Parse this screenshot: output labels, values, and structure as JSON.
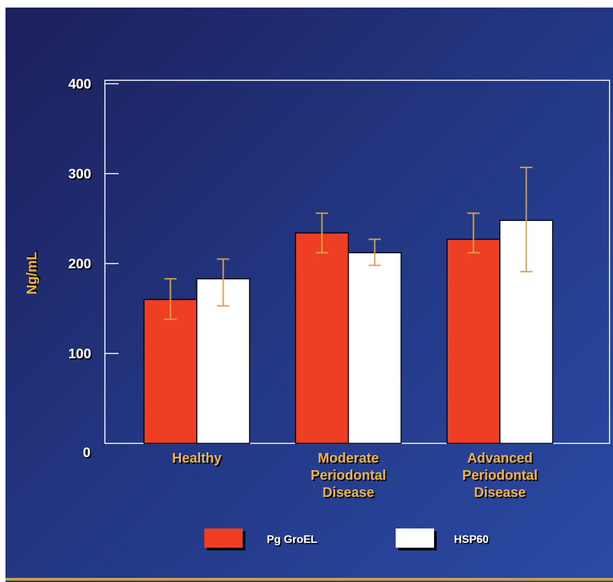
{
  "chart_data": {
    "type": "bar",
    "ylabel": "Ng/mL",
    "ylim": [
      0,
      400
    ],
    "yticks": [
      0,
      100,
      200,
      300,
      400
    ],
    "categories": [
      [
        "Healthy"
      ],
      [
        "Moderate",
        "Periodontal",
        "Disease"
      ],
      [
        "Advanced",
        "Periodontal",
        "Disease"
      ]
    ],
    "series": [
      {
        "name": "Pg GroEL",
        "color": "#ee3e23",
        "values": [
          160,
          234,
          227
        ],
        "err_low": [
          138,
          212,
          212
        ],
        "err_high": [
          183,
          256,
          256
        ]
      },
      {
        "name": "HSP60",
        "color": "#ffffff",
        "values": [
          183,
          212,
          248
        ],
        "err_low": [
          153,
          198,
          191
        ],
        "err_high": [
          205,
          227,
          307
        ]
      }
    ],
    "error_bar_color": "#d9a24a",
    "legend_position": "bottom"
  }
}
